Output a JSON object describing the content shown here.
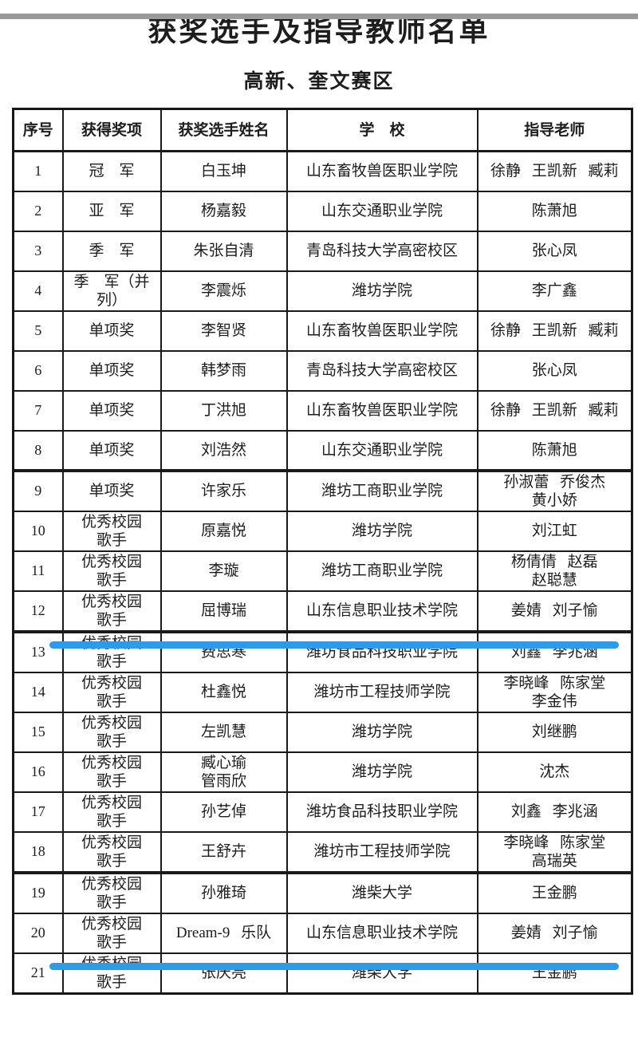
{
  "page": {
    "title": "获奖选手及指导教师名单",
    "subtitle": "高新、奎文赛区"
  },
  "table": {
    "columns": [
      "序号",
      "获得奖项",
      "获奖选手姓名",
      "学　校",
      "指导老师"
    ],
    "rows": [
      {
        "no": "1",
        "award": "冠　军",
        "name": "白玉坤",
        "school": "山东畜牧兽医职业学院",
        "teachers": "徐静 王凯新 臧莉"
      },
      {
        "no": "2",
        "award": "亚　军",
        "name": "杨嘉毅",
        "school": "山东交通职业学院",
        "teachers": "陈萧旭"
      },
      {
        "no": "3",
        "award": "季　军",
        "name": "朱张自清",
        "school": "青岛科技大学高密校区",
        "teachers": "张心凤"
      },
      {
        "no": "4",
        "award": "季　军（并\n列）",
        "name": "李震烁",
        "school": "潍坊学院",
        "teachers": "李广鑫"
      },
      {
        "no": "5",
        "award": "单项奖",
        "name": "李智贤",
        "school": "山东畜牧兽医职业学院",
        "teachers": "徐静 王凯新 臧莉"
      },
      {
        "no": "6",
        "award": "单项奖",
        "name": "韩梦雨",
        "school": "青岛科技大学高密校区",
        "teachers": "张心凤"
      },
      {
        "no": "7",
        "award": "单项奖",
        "name": "丁洪旭",
        "school": "山东畜牧兽医职业学院",
        "teachers": "徐静 王凯新 臧莉"
      },
      {
        "no": "8",
        "award": "单项奖",
        "name": "刘浩然",
        "school": "山东交通职业学院",
        "teachers": "陈萧旭"
      },
      {
        "no": "9",
        "award": "单项奖",
        "name": "许家乐",
        "school": "潍坊工商职业学院",
        "teachers": "孙淑蕾 乔俊杰\n黄小娇"
      },
      {
        "no": "10",
        "award": "优秀校园\n歌手",
        "name": "原嘉悦",
        "school": "潍坊学院",
        "teachers": "刘江虹"
      },
      {
        "no": "11",
        "award": "优秀校园\n歌手",
        "name": "李璇",
        "school": "潍坊工商职业学院",
        "teachers": "杨倩倩 赵磊\n赵聪慧"
      },
      {
        "no": "12",
        "award": "优秀校园\n歌手",
        "name": "屈博瑞",
        "school": "山东信息职业技术学院",
        "teachers": "姜婧 刘子愉"
      },
      {
        "no": "13",
        "award": "优秀校园\n歌手",
        "name": "费思寒",
        "school": "潍坊食品科技职业学院",
        "teachers": "刘鑫 李兆涵"
      },
      {
        "no": "14",
        "award": "优秀校园\n歌手",
        "name": "杜鑫悦",
        "school": "潍坊市工程技师学院",
        "teachers": "李晓峰 陈家堂\n李金伟"
      },
      {
        "no": "15",
        "award": "优秀校园\n歌手",
        "name": "左凯慧",
        "school": "潍坊学院",
        "teachers": "刘继鹏"
      },
      {
        "no": "16",
        "award": "优秀校园\n歌手",
        "name": "臧心瑜\n管雨欣",
        "school": "潍坊学院",
        "teachers": "沈杰"
      },
      {
        "no": "17",
        "award": "优秀校园\n歌手",
        "name": "孙艺倬",
        "school": "潍坊食品科技职业学院",
        "teachers": "刘鑫 李兆涵"
      },
      {
        "no": "18",
        "award": "优秀校园\n歌手",
        "name": "王舒卉",
        "school": "潍坊市工程技师学院",
        "teachers": "李晓峰 陈家堂\n高瑞英"
      },
      {
        "no": "19",
        "award": "优秀校园\n歌手",
        "name": "孙雅琦",
        "school": "潍柴大学",
        "teachers": "王金鹏"
      },
      {
        "no": "20",
        "award": "优秀校园\n歌手",
        "name": "Dream-9 乐队",
        "school": "山东信息职业技术学院",
        "teachers": "姜婧 刘子愉"
      },
      {
        "no": "21",
        "award": "优秀校园\n歌手",
        "name": "张庆亮",
        "school": "潍柴大学",
        "teachers": "王金鹏"
      }
    ],
    "highlighted_row_numbers": [
      12,
      20
    ],
    "page_break_row_numbers": [
      9,
      13,
      19
    ]
  },
  "colors": {
    "highlight_blue": "#2d9be9",
    "top_bar_gray": "#9a9a9a"
  }
}
